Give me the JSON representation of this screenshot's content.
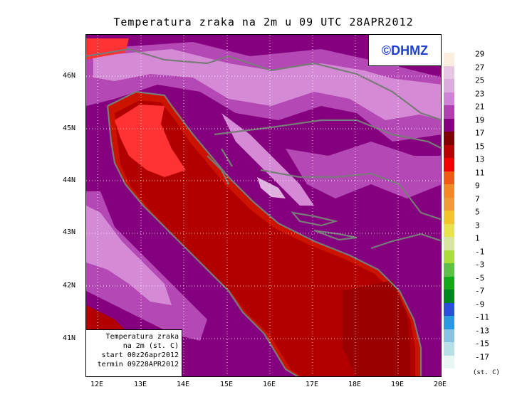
{
  "title": "Temperatura zraka na 2m u 09 UTC 28APR2012",
  "logo": "©DHMZ",
  "infobox": [
    "Temperatura zraka",
    "na 2m (st. C)",
    "start 00z26apr2012",
    "termin 09Z28APR2012"
  ],
  "axes": {
    "lat_labels": [
      "46N",
      "45N",
      "44N",
      "43N",
      "42N",
      "41N"
    ],
    "lon_labels": [
      "12E",
      "13E",
      "14E",
      "15E",
      "16E",
      "17E",
      "18E",
      "19E",
      "20E"
    ]
  },
  "legend": {
    "units": "(st. C)",
    "labels": [
      "29",
      "27",
      "25",
      "23",
      "21",
      "19",
      "17",
      "15",
      "13",
      "11",
      "9",
      "7",
      "5",
      "3",
      "1",
      "-1",
      "-3",
      "-5",
      "-7",
      "-9",
      "-11",
      "-13",
      "-15",
      "-17"
    ],
    "colors": [
      "#fbeee0",
      "#e6c6e3",
      "#ddaadd",
      "#cf82d6",
      "#b040b0",
      "#84007e",
      "#800000",
      "#b80000",
      "#f00000",
      "#f25a14",
      "#f18a22",
      "#ee9d34",
      "#f2c42a",
      "#e8e34d",
      "#d6e6a2",
      "#a8dd3a",
      "#5cc04a",
      "#14a81e",
      "#00861e",
      "#2a4fd8",
      "#2a99e0",
      "#88c2e2",
      "#b9dfe6",
      "#e8f7f5"
    ]
  },
  "colors": {
    "sea": "#b20000",
    "coast_sea": "#cc1300",
    "land_warm": "#85007f",
    "land_mid": "#b448b5",
    "land_cool": "#d58ad6",
    "land_cold": "#e0b2df",
    "hot": "#ff3333",
    "border": "#7a7a7a"
  }
}
